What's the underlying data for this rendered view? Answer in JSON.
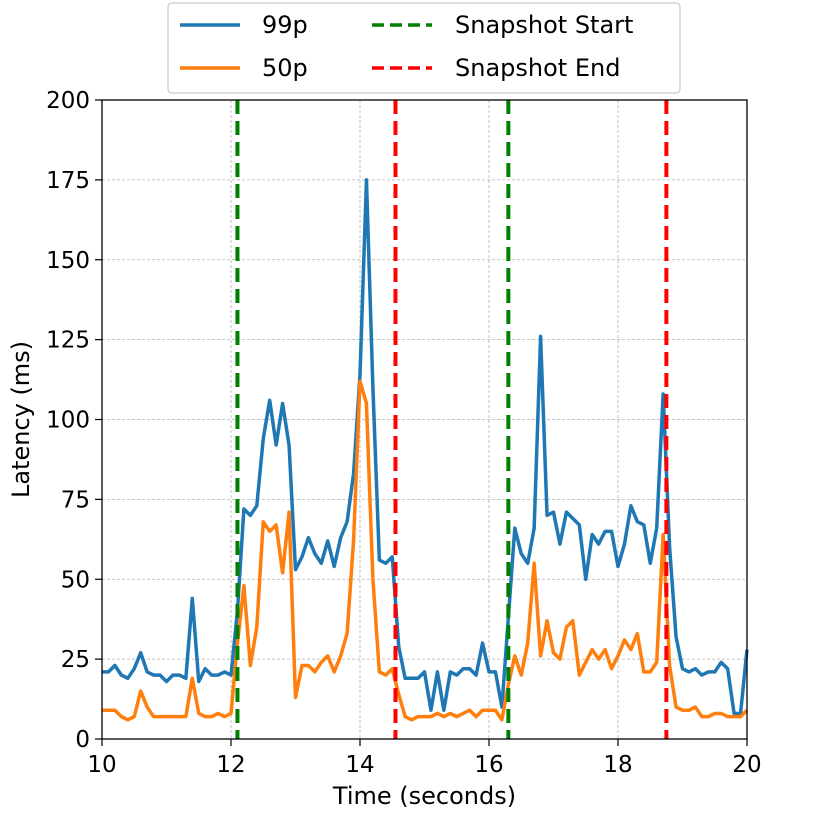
{
  "chart_data": {
    "type": "line",
    "title": "",
    "xlabel": "Time (seconds)",
    "ylabel": "Latency (ms)",
    "xlim": [
      10,
      20
    ],
    "ylim": [
      0,
      200
    ],
    "x_ticks": [
      10,
      12,
      14,
      16,
      18,
      20
    ],
    "y_ticks": [
      0,
      25,
      50,
      75,
      100,
      125,
      150,
      175,
      200
    ],
    "grid": true,
    "legend_position": "top-center, outside plot",
    "series": [
      {
        "name": "99p",
        "color": "#1f77b4",
        "x": [
          10,
          10.1,
          10.2,
          10.3,
          10.4,
          10.5,
          10.6,
          10.7,
          10.8,
          10.9,
          11,
          11.1,
          11.2,
          11.3,
          11.4,
          11.5,
          11.6,
          11.7,
          11.8,
          11.9,
          12,
          12.1,
          12.2,
          12.3,
          12.4,
          12.5,
          12.6,
          12.7,
          12.8,
          12.9,
          13,
          13.1,
          13.2,
          13.3,
          13.4,
          13.5,
          13.6,
          13.7,
          13.8,
          13.9,
          14,
          14.1,
          14.2,
          14.3,
          14.4,
          14.5,
          14.6,
          14.7,
          14.8,
          14.9,
          15,
          15.1,
          15.2,
          15.3,
          15.4,
          15.5,
          15.6,
          15.7,
          15.8,
          15.9,
          16,
          16.1,
          16.2,
          16.3,
          16.4,
          16.5,
          16.6,
          16.7,
          16.8,
          16.9,
          17,
          17.1,
          17.2,
          17.3,
          17.4,
          17.5,
          17.6,
          17.7,
          17.8,
          17.9,
          18,
          18.1,
          18.2,
          18.3,
          18.4,
          18.5,
          18.6,
          18.7,
          18.8,
          18.9,
          19,
          19.1,
          19.2,
          19.3,
          19.4,
          19.5,
          19.6,
          19.7,
          19.8,
          19.9,
          20
        ],
        "values": [
          21,
          21,
          23,
          20,
          19,
          22,
          27,
          21,
          20,
          20,
          18,
          20,
          20,
          19,
          44,
          18,
          22,
          20,
          20,
          21,
          20,
          40,
          72,
          70,
          73,
          94,
          106,
          92,
          105,
          92,
          53,
          57,
          63,
          58,
          55,
          62,
          54,
          63,
          68,
          83,
          114,
          175,
          110,
          56,
          55,
          57,
          29,
          19,
          19,
          19,
          21,
          9,
          21,
          9,
          21,
          20,
          22,
          22,
          20,
          30,
          21,
          21,
          10,
          38,
          66,
          58,
          55,
          66,
          126,
          70,
          71,
          61,
          71,
          69,
          67,
          50,
          64,
          61,
          65,
          65,
          54,
          61,
          73,
          68,
          67,
          55,
          66,
          108,
          60,
          32,
          22,
          21,
          22,
          20,
          21,
          21,
          24,
          22,
          8,
          8,
          28
        ]
      },
      {
        "name": "50p",
        "color": "#ff7f0e",
        "x": [
          10,
          10.1,
          10.2,
          10.3,
          10.4,
          10.5,
          10.6,
          10.7,
          10.8,
          10.9,
          11,
          11.1,
          11.2,
          11.3,
          11.4,
          11.5,
          11.6,
          11.7,
          11.8,
          11.9,
          12,
          12.1,
          12.2,
          12.3,
          12.4,
          12.5,
          12.6,
          12.7,
          12.8,
          12.9,
          13,
          13.1,
          13.2,
          13.3,
          13.4,
          13.5,
          13.6,
          13.7,
          13.8,
          13.9,
          14,
          14.1,
          14.2,
          14.3,
          14.4,
          14.5,
          14.6,
          14.7,
          14.8,
          14.9,
          15,
          15.1,
          15.2,
          15.3,
          15.4,
          15.5,
          15.6,
          15.7,
          15.8,
          15.9,
          16,
          16.1,
          16.2,
          16.3,
          16.4,
          16.5,
          16.6,
          16.7,
          16.8,
          16.9,
          17,
          17.1,
          17.2,
          17.3,
          17.4,
          17.5,
          17.6,
          17.7,
          17.8,
          17.9,
          18,
          18.1,
          18.2,
          18.3,
          18.4,
          18.5,
          18.6,
          18.7,
          18.8,
          18.9,
          19,
          19.1,
          19.2,
          19.3,
          19.4,
          19.5,
          19.6,
          19.7,
          19.8,
          19.9,
          20
        ],
        "values": [
          9,
          9,
          9,
          7,
          6,
          7,
          15,
          10,
          7,
          7,
          7,
          7,
          7,
          7,
          19,
          8,
          7,
          7,
          8,
          7,
          8,
          30,
          48,
          23,
          35,
          68,
          65,
          67,
          52,
          71,
          13,
          23,
          23,
          21,
          24,
          26,
          21,
          26,
          33,
          62,
          112,
          105,
          50,
          21,
          20,
          22,
          14,
          7,
          6,
          7,
          7,
          7,
          8,
          7,
          8,
          7,
          8,
          9,
          7,
          9,
          9,
          9,
          6,
          17,
          26,
          20,
          30,
          55,
          26,
          37,
          27,
          25,
          35,
          37,
          20,
          24,
          28,
          25,
          28,
          22,
          26,
          31,
          28,
          33,
          21,
          21,
          24,
          64,
          23,
          10,
          9,
          9,
          10,
          7,
          7,
          8,
          8,
          7,
          7,
          7,
          9
        ]
      }
    ],
    "markers": [
      {
        "name": "Snapshot Start",
        "color": "#008000",
        "style": "dashed",
        "x": [
          12.1,
          16.3
        ]
      },
      {
        "name": "Snapshot End",
        "color": "#ff0000",
        "style": "dashed",
        "x": [
          14.55,
          18.75
        ]
      }
    ],
    "legend": [
      "99p",
      "50p",
      "Snapshot Start",
      "Snapshot End"
    ]
  }
}
